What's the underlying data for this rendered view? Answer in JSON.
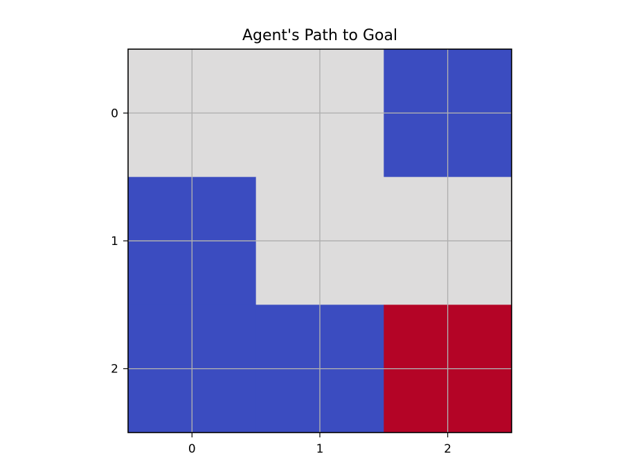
{
  "chart_data": {
    "type": "heatmap",
    "title": "Agent's Path to Goal",
    "xlabel": "",
    "ylabel": "",
    "x_ticks": [
      "0",
      "1",
      "2"
    ],
    "y_ticks": [
      "0",
      "1",
      "2"
    ],
    "grid": true,
    "values": [
      [
        0.5,
        0.5,
        0
      ],
      [
        0,
        0.5,
        0.5
      ],
      [
        0,
        0,
        1
      ]
    ],
    "colors": {
      "0": "#3b4cc0",
      "0.5": "#dddcdc",
      "1": "#b40426"
    },
    "grid_color": "#b0b0b0",
    "frame_color": "#000000"
  }
}
